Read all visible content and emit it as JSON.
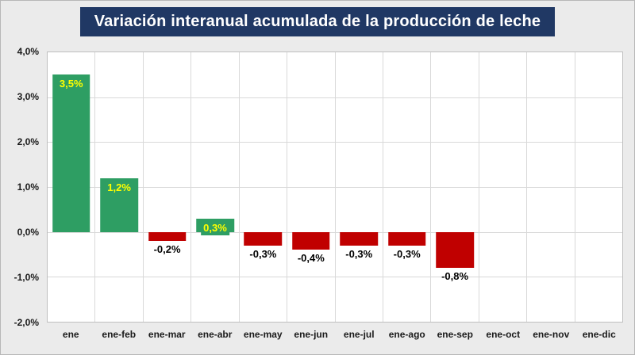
{
  "chart_data": {
    "type": "bar",
    "title": "Variación interanual acumulada de la producción de leche",
    "categories": [
      "ene",
      "ene-feb",
      "ene-mar",
      "ene-abr",
      "ene-may",
      "ene-jun",
      "ene-jul",
      "ene-ago",
      "ene-sep",
      "ene-oct",
      "ene-nov",
      "ene-dic"
    ],
    "values": [
      3.5,
      1.2,
      -0.2,
      0.3,
      -0.3,
      -0.4,
      -0.3,
      -0.3,
      -0.8,
      null,
      null,
      null
    ],
    "labels": [
      "3,5%",
      "1,2%",
      "-0,2%",
      "0,3%",
      "-0,3%",
      "-0,4%",
      "-0,3%",
      "-0,3%",
      "-0,8%",
      "",
      "",
      ""
    ],
    "ylim": [
      -2,
      4
    ],
    "yticks": [
      4,
      3,
      2,
      1,
      0,
      -1,
      -2
    ],
    "ytick_labels": [
      "4,0%",
      "3,0%",
      "2,0%",
      "1,0%",
      "0,0%",
      "-1,0%",
      "-2,0%"
    ],
    "grid": true,
    "legend": "none",
    "colors": {
      "positive_bar": "#2E9E63",
      "negative_bar": "#C00000",
      "positive_label": "#FFFF00",
      "negative_label": "#000000",
      "title_bg": "#203864",
      "title_text": "#FFFFFF",
      "page_bg": "#EBEBEB",
      "plot_bg": "#FFFFFF",
      "gridline": "#D9D9D9"
    }
  }
}
